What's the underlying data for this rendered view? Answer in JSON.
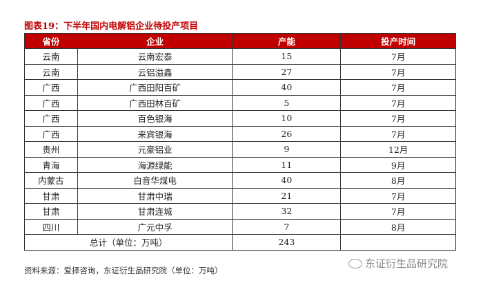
{
  "caption": "图表19：下半年国内电解铝企业待投产项目",
  "table": {
    "headers": [
      "省份",
      "企业",
      "产能",
      "投产时间"
    ],
    "rows": [
      [
        "云南",
        "云南宏泰",
        "15",
        "7月"
      ],
      [
        "云南",
        "云铝溢鑫",
        "27",
        "7月"
      ],
      [
        "广西",
        "广西田阳百矿",
        "40",
        "7月"
      ],
      [
        "广西",
        "广西田林百矿",
        "5",
        "7月"
      ],
      [
        "广西",
        "百色银海",
        "10",
        "7月"
      ],
      [
        "广西",
        "来宾银海",
        "26",
        "7月"
      ],
      [
        "贵州",
        "元豪铝业",
        "9",
        "12月"
      ],
      [
        "青海",
        "海源绿能",
        "11",
        "9月"
      ],
      [
        "内蒙古",
        "白音华煤电",
        "40",
        "8月"
      ],
      [
        "甘肃",
        "甘肃中瑞",
        "21",
        "7月"
      ],
      [
        "甘肃",
        "甘肃连城",
        "32",
        "7月"
      ],
      [
        "四川",
        "广元中孚",
        "7",
        "8月"
      ]
    ],
    "total_label": "总计（单位：万吨）",
    "total_value": "243",
    "header_color": "#c00000"
  },
  "source": "资料来源：爱择咨询，东证衍生品研究院（单位：万吨）",
  "watermark": "东证衍生品研究院"
}
